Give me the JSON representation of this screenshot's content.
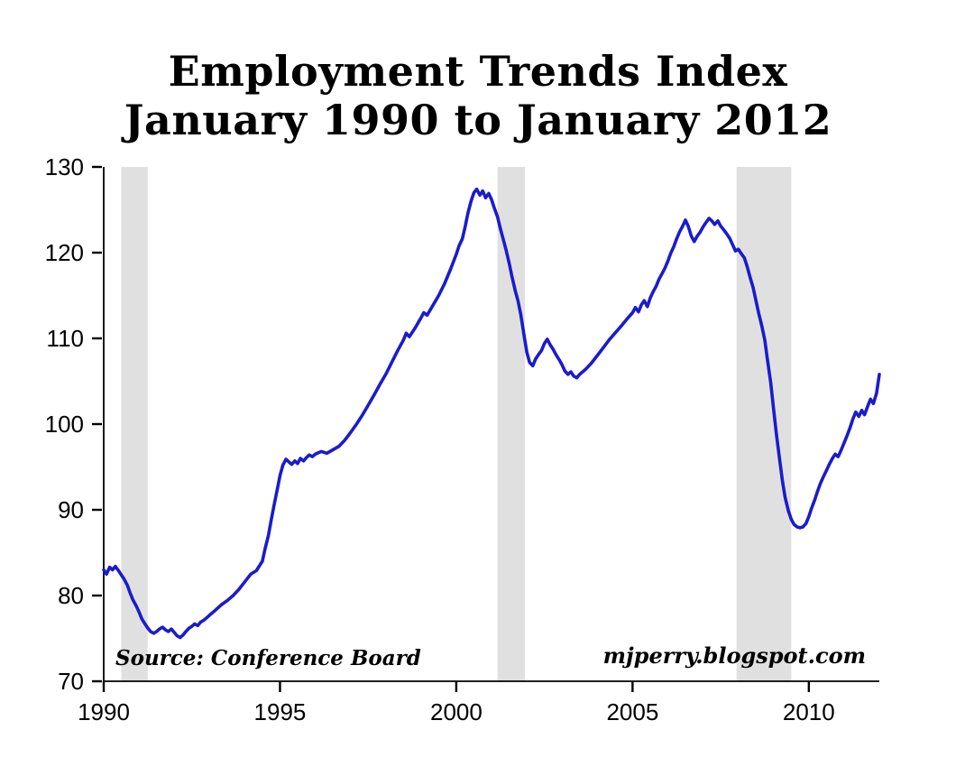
{
  "chart_data": {
    "type": "line",
    "title_line1": "Employment Trends Index",
    "title_line2": "January 1990 to January 2012",
    "source_note": "Source: Conference Board",
    "watermark": "mjperry.blogspot.com",
    "xlabel": "",
    "ylabel": "",
    "xlim": [
      1990,
      2012
    ],
    "ylim": [
      70,
      130
    ],
    "x_ticks": [
      1990,
      1995,
      2000,
      2005,
      2010
    ],
    "y_ticks": [
      70,
      80,
      90,
      100,
      110,
      120,
      130
    ],
    "grid": false,
    "legend": "none",
    "line_color": "#1b1bcd",
    "line_width": 3.6,
    "recession_band_color": "#e0e0e0",
    "recession_bands": [
      [
        1990.5,
        1991.25
      ],
      [
        2001.17,
        2001.95
      ],
      [
        2007.95,
        2009.5
      ]
    ],
    "series": [
      {
        "name": "Employment Trends Index",
        "points": [
          [
            1990.0,
            83.0
          ],
          [
            1990.08,
            82.5
          ],
          [
            1990.17,
            83.3
          ],
          [
            1990.25,
            83.0
          ],
          [
            1990.33,
            83.4
          ],
          [
            1990.42,
            82.9
          ],
          [
            1990.5,
            82.4
          ],
          [
            1990.58,
            81.9
          ],
          [
            1990.67,
            81.2
          ],
          [
            1990.75,
            80.3
          ],
          [
            1990.83,
            79.5
          ],
          [
            1990.92,
            78.8
          ],
          [
            1991.0,
            78.1
          ],
          [
            1991.08,
            77.3
          ],
          [
            1991.17,
            76.7
          ],
          [
            1991.25,
            76.2
          ],
          [
            1991.33,
            75.8
          ],
          [
            1991.42,
            75.6
          ],
          [
            1991.5,
            75.8
          ],
          [
            1991.58,
            76.1
          ],
          [
            1991.67,
            76.3
          ],
          [
            1991.75,
            76.0
          ],
          [
            1991.83,
            75.8
          ],
          [
            1991.92,
            76.1
          ],
          [
            1992.0,
            75.7
          ],
          [
            1992.08,
            75.3
          ],
          [
            1992.17,
            75.1
          ],
          [
            1992.25,
            75.4
          ],
          [
            1992.33,
            75.8
          ],
          [
            1992.42,
            76.2
          ],
          [
            1992.5,
            76.4
          ],
          [
            1992.58,
            76.7
          ],
          [
            1992.67,
            76.5
          ],
          [
            1992.75,
            76.9
          ],
          [
            1992.83,
            77.1
          ],
          [
            1992.92,
            77.4
          ],
          [
            1993.0,
            77.7
          ],
          [
            1993.17,
            78.3
          ],
          [
            1993.33,
            78.9
          ],
          [
            1993.5,
            79.4
          ],
          [
            1993.67,
            80.0
          ],
          [
            1993.83,
            80.7
          ],
          [
            1994.0,
            81.6
          ],
          [
            1994.17,
            82.5
          ],
          [
            1994.33,
            82.9
          ],
          [
            1994.5,
            84.0
          ],
          [
            1994.58,
            85.5
          ],
          [
            1994.67,
            87.0
          ],
          [
            1994.75,
            88.8
          ],
          [
            1994.83,
            90.5
          ],
          [
            1994.92,
            92.3
          ],
          [
            1995.0,
            94.0
          ],
          [
            1995.08,
            95.2
          ],
          [
            1995.17,
            95.9
          ],
          [
            1995.25,
            95.6
          ],
          [
            1995.33,
            95.3
          ],
          [
            1995.42,
            95.7
          ],
          [
            1995.5,
            95.4
          ],
          [
            1995.58,
            96.0
          ],
          [
            1995.67,
            95.7
          ],
          [
            1995.75,
            96.1
          ],
          [
            1995.83,
            96.4
          ],
          [
            1995.92,
            96.2
          ],
          [
            1996.0,
            96.5
          ],
          [
            1996.17,
            96.8
          ],
          [
            1996.33,
            96.6
          ],
          [
            1996.5,
            97.0
          ],
          [
            1996.67,
            97.4
          ],
          [
            1996.83,
            98.1
          ],
          [
            1997.0,
            99.0
          ],
          [
            1997.17,
            100.0
          ],
          [
            1997.33,
            101.0
          ],
          [
            1997.5,
            102.2
          ],
          [
            1997.67,
            103.4
          ],
          [
            1997.83,
            104.6
          ],
          [
            1998.0,
            105.8
          ],
          [
            1998.17,
            107.2
          ],
          [
            1998.33,
            108.5
          ],
          [
            1998.5,
            109.8
          ],
          [
            1998.58,
            110.6
          ],
          [
            1998.67,
            110.2
          ],
          [
            1998.83,
            111.2
          ],
          [
            1999.0,
            112.4
          ],
          [
            1999.08,
            113.0
          ],
          [
            1999.17,
            112.7
          ],
          [
            1999.33,
            113.8
          ],
          [
            1999.5,
            115.0
          ],
          [
            1999.67,
            116.4
          ],
          [
            1999.83,
            118.0
          ],
          [
            2000.0,
            119.8
          ],
          [
            2000.08,
            120.8
          ],
          [
            2000.17,
            121.6
          ],
          [
            2000.25,
            123.0
          ],
          [
            2000.33,
            124.6
          ],
          [
            2000.42,
            126.0
          ],
          [
            2000.5,
            127.0
          ],
          [
            2000.58,
            127.4
          ],
          [
            2000.67,
            126.7
          ],
          [
            2000.75,
            127.2
          ],
          [
            2000.83,
            126.4
          ],
          [
            2000.92,
            126.9
          ],
          [
            2001.0,
            126.2
          ],
          [
            2001.08,
            125.2
          ],
          [
            2001.17,
            124.2
          ],
          [
            2001.25,
            122.8
          ],
          [
            2001.33,
            121.6
          ],
          [
            2001.42,
            120.2
          ],
          [
            2001.5,
            118.8
          ],
          [
            2001.58,
            117.2
          ],
          [
            2001.67,
            115.6
          ],
          [
            2001.75,
            114.4
          ],
          [
            2001.83,
            112.8
          ],
          [
            2001.92,
            110.4
          ],
          [
            2002.0,
            108.4
          ],
          [
            2002.08,
            107.2
          ],
          [
            2002.17,
            106.8
          ],
          [
            2002.25,
            107.6
          ],
          [
            2002.33,
            108.1
          ],
          [
            2002.42,
            108.6
          ],
          [
            2002.5,
            109.4
          ],
          [
            2002.58,
            109.9
          ],
          [
            2002.67,
            109.2
          ],
          [
            2002.75,
            108.7
          ],
          [
            2002.83,
            108.1
          ],
          [
            2002.92,
            107.5
          ],
          [
            2003.0,
            106.9
          ],
          [
            2003.08,
            106.2
          ],
          [
            2003.17,
            105.8
          ],
          [
            2003.25,
            106.1
          ],
          [
            2003.33,
            105.6
          ],
          [
            2003.42,
            105.4
          ],
          [
            2003.5,
            105.8
          ],
          [
            2003.67,
            106.4
          ],
          [
            2003.83,
            107.1
          ],
          [
            2004.0,
            108.0
          ],
          [
            2004.17,
            108.9
          ],
          [
            2004.33,
            109.8
          ],
          [
            2004.5,
            110.6
          ],
          [
            2004.67,
            111.4
          ],
          [
            2004.83,
            112.2
          ],
          [
            2005.0,
            113.0
          ],
          [
            2005.08,
            113.6
          ],
          [
            2005.17,
            113.1
          ],
          [
            2005.25,
            113.9
          ],
          [
            2005.33,
            114.4
          ],
          [
            2005.42,
            113.7
          ],
          [
            2005.5,
            114.7
          ],
          [
            2005.58,
            115.4
          ],
          [
            2005.67,
            116.1
          ],
          [
            2005.75,
            116.9
          ],
          [
            2005.83,
            117.5
          ],
          [
            2005.92,
            118.2
          ],
          [
            2006.0,
            119.0
          ],
          [
            2006.08,
            119.9
          ],
          [
            2006.17,
            120.7
          ],
          [
            2006.25,
            121.6
          ],
          [
            2006.33,
            122.4
          ],
          [
            2006.42,
            123.1
          ],
          [
            2006.5,
            123.8
          ],
          [
            2006.58,
            123.1
          ],
          [
            2006.67,
            121.9
          ],
          [
            2006.75,
            121.3
          ],
          [
            2006.83,
            121.9
          ],
          [
            2006.92,
            122.4
          ],
          [
            2007.0,
            123.0
          ],
          [
            2007.08,
            123.5
          ],
          [
            2007.17,
            124.0
          ],
          [
            2007.25,
            123.7
          ],
          [
            2007.33,
            123.3
          ],
          [
            2007.42,
            123.7
          ],
          [
            2007.5,
            123.1
          ],
          [
            2007.58,
            122.7
          ],
          [
            2007.67,
            122.2
          ],
          [
            2007.75,
            121.7
          ],
          [
            2007.83,
            121.0
          ],
          [
            2007.92,
            120.2
          ],
          [
            2008.0,
            120.4
          ],
          [
            2008.08,
            119.9
          ],
          [
            2008.17,
            119.4
          ],
          [
            2008.25,
            118.4
          ],
          [
            2008.33,
            117.2
          ],
          [
            2008.42,
            115.9
          ],
          [
            2008.5,
            114.4
          ],
          [
            2008.58,
            112.9
          ],
          [
            2008.67,
            111.4
          ],
          [
            2008.75,
            109.8
          ],
          [
            2008.83,
            107.4
          ],
          [
            2008.92,
            104.8
          ],
          [
            2009.0,
            101.8
          ],
          [
            2009.08,
            98.8
          ],
          [
            2009.17,
            95.9
          ],
          [
            2009.25,
            93.4
          ],
          [
            2009.33,
            91.4
          ],
          [
            2009.42,
            89.9
          ],
          [
            2009.5,
            88.9
          ],
          [
            2009.58,
            88.3
          ],
          [
            2009.67,
            88.0
          ],
          [
            2009.75,
            87.9
          ],
          [
            2009.83,
            88.0
          ],
          [
            2009.92,
            88.4
          ],
          [
            2010.0,
            89.2
          ],
          [
            2010.08,
            90.2
          ],
          [
            2010.17,
            91.2
          ],
          [
            2010.25,
            92.2
          ],
          [
            2010.33,
            93.1
          ],
          [
            2010.42,
            93.9
          ],
          [
            2010.5,
            94.6
          ],
          [
            2010.58,
            95.3
          ],
          [
            2010.67,
            96.0
          ],
          [
            2010.75,
            96.5
          ],
          [
            2010.83,
            96.2
          ],
          [
            2010.92,
            97.0
          ],
          [
            2011.0,
            97.8
          ],
          [
            2011.08,
            98.6
          ],
          [
            2011.17,
            99.6
          ],
          [
            2011.25,
            100.6
          ],
          [
            2011.33,
            101.4
          ],
          [
            2011.42,
            100.9
          ],
          [
            2011.5,
            101.6
          ],
          [
            2011.58,
            101.1
          ],
          [
            2011.67,
            102.1
          ],
          [
            2011.75,
            102.9
          ],
          [
            2011.83,
            102.4
          ],
          [
            2011.92,
            103.6
          ],
          [
            2012.0,
            105.8
          ]
        ]
      }
    ]
  }
}
